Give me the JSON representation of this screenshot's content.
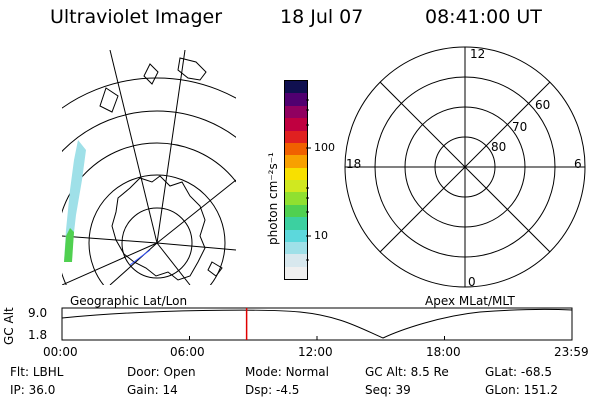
{
  "header": {
    "instrument": "Ultraviolet Imager",
    "date": "18 Jul 07",
    "time": "08:41:00 UT"
  },
  "left_panel": {
    "label": "Geographic Lat/Lon"
  },
  "colorbar": {
    "unit_label": "photon cm⁻²s⁻¹",
    "ticks": [
      "100",
      "10"
    ],
    "colors": [
      "#f0f0f0",
      "#d8e8ee",
      "#9fe0e8",
      "#5cd8dc",
      "#3cd0a0",
      "#50d050",
      "#90e030",
      "#d0e820",
      "#f8e000",
      "#f8a000",
      "#f06000",
      "#e02020",
      "#c00040",
      "#900060",
      "#500070",
      "#101050"
    ]
  },
  "right_panel": {
    "label": "Apex MLat/MLT",
    "mlt_labels": {
      "top": "12",
      "left": "18",
      "right": "6",
      "bottom": "0"
    },
    "mlat_labels": [
      "60",
      "70",
      "80"
    ]
  },
  "altitude_plot": {
    "ylabel": "GC Alt",
    "ymax": "9.0",
    "ymin": "1.8",
    "xticks": [
      "00:00",
      "06:00",
      "12:00",
      "18:00",
      "23:59"
    ],
    "current_time_fraction": 0.362
  },
  "info": {
    "row1": [
      {
        "label": "Flt:",
        "value": "LBHL"
      },
      {
        "label": "Door:",
        "value": "Open"
      },
      {
        "label": "Mode:",
        "value": "Normal"
      },
      {
        "label": "GC Alt:",
        "value": "8.5 Re"
      },
      {
        "label": "GLat:",
        "value": "-68.5"
      }
    ],
    "row2": [
      {
        "label": "IP:",
        "value": "36.0"
      },
      {
        "label": "Gain:",
        "value": "14"
      },
      {
        "label": "Dsp:",
        "value": "-4.5"
      },
      {
        "label": "Seq:",
        "value": "39"
      },
      {
        "label": "GLon:",
        "value": "151.2"
      }
    ]
  }
}
